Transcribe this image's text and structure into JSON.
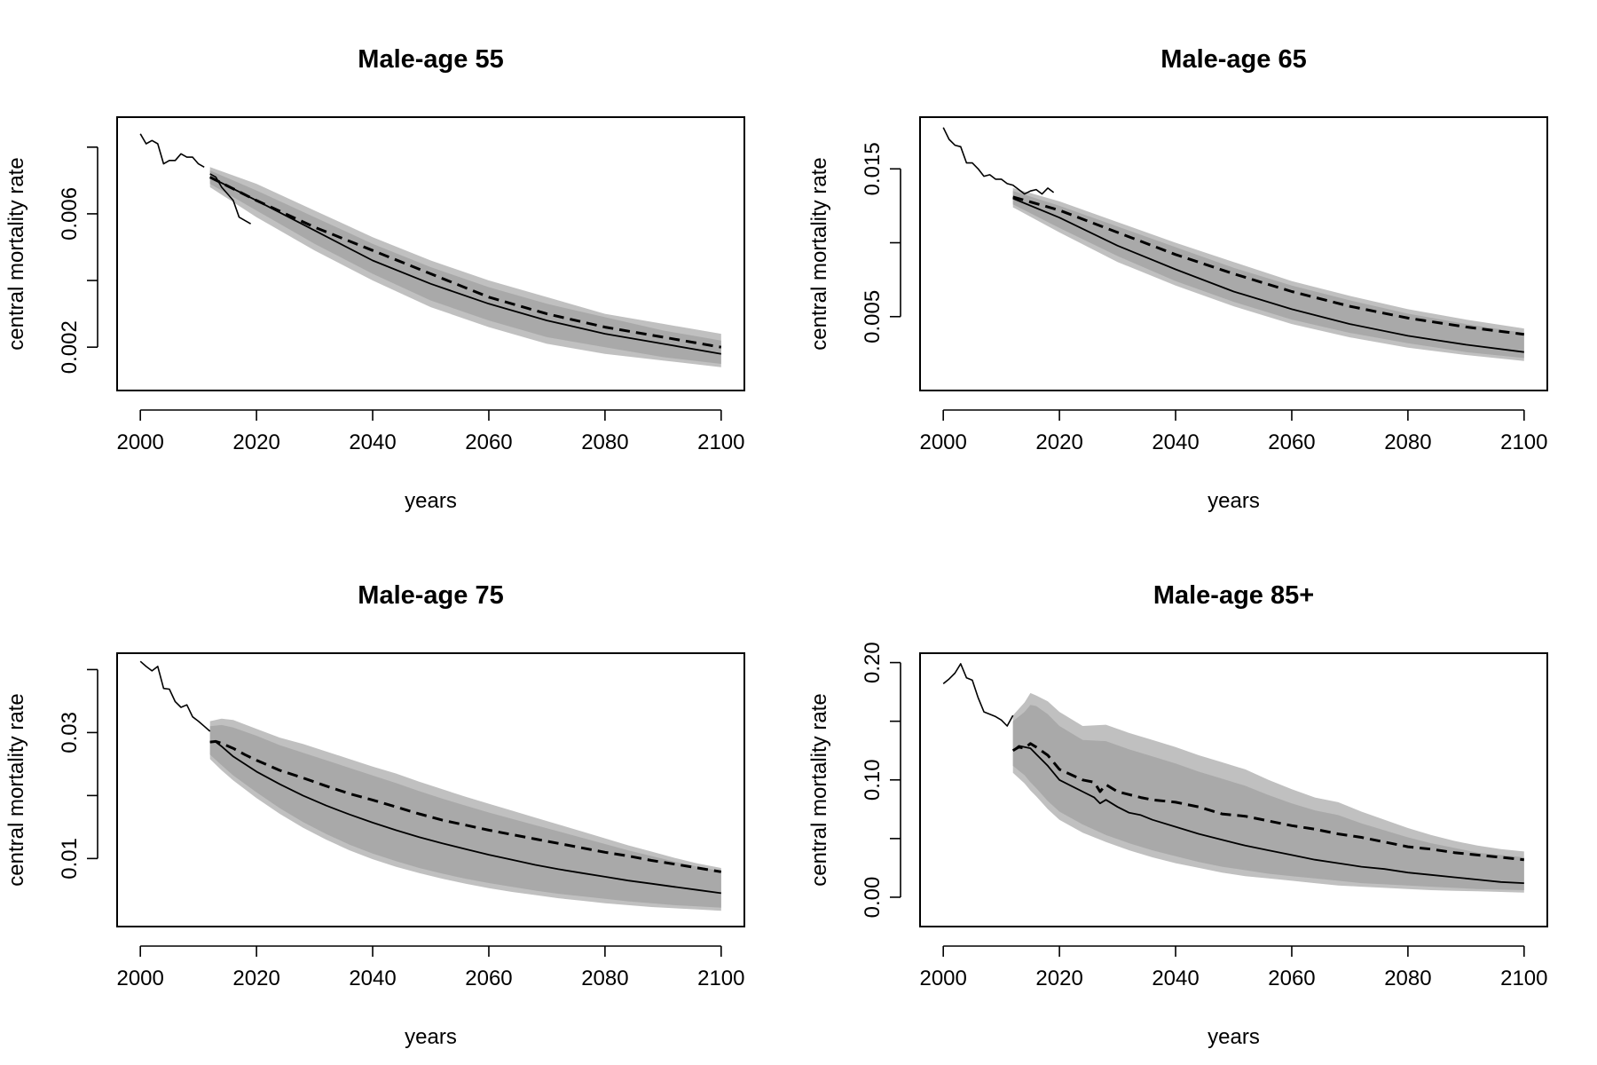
{
  "figure": {
    "layout": "2x2 grid",
    "colors": {
      "band_outer": "#c0c0c0",
      "band_inner": "#a9a9a9",
      "line": "#000000",
      "background": "#ffffff"
    }
  },
  "chart_data": [
    {
      "type": "line",
      "title": "Male-age 55",
      "xlabel": "years",
      "ylabel": "central mortality rate",
      "xlim": [
        1996,
        2104
      ],
      "ylim": [
        0.0007,
        0.0089
      ],
      "xticks": [
        "2000",
        "2020",
        "2040",
        "2060",
        "2080",
        "2100"
      ],
      "yticks": [
        "0.002",
        "0.006"
      ],
      "ytick_values": [
        0.002,
        0.004,
        0.006,
        0.008
      ],
      "series": [
        {
          "style": "observed",
          "x": [
            2000,
            2001,
            2002,
            2003,
            2004,
            2005,
            2006,
            2007,
            2008,
            2009,
            2010,
            2011
          ],
          "y": [
            0.0084,
            0.0081,
            0.0082,
            0.0081,
            0.0075,
            0.0076,
            0.0076,
            0.0078,
            0.0077,
            0.0077,
            0.0075,
            0.0074
          ]
        },
        {
          "style": "observed",
          "x": [
            2012,
            2013,
            2014,
            2015,
            2016,
            2017,
            2018,
            2019
          ],
          "y": [
            0.0072,
            0.0071,
            0.0068,
            0.0066,
            0.0064,
            0.0059,
            0.0058,
            0.0057
          ]
        },
        {
          "style": "solid",
          "x": [
            2012,
            2020,
            2030,
            2040,
            2050,
            2060,
            2070,
            2080,
            2090,
            2100
          ],
          "y": [
            0.0071,
            0.0064,
            0.0055,
            0.0046,
            0.0039,
            0.0033,
            0.0028,
            0.0024,
            0.0021,
            0.0018
          ]
        },
        {
          "style": "dashed",
          "x": [
            2012,
            2020,
            2030,
            2040,
            2050,
            2060,
            2070,
            2080,
            2090,
            2100
          ],
          "y": [
            0.0071,
            0.0064,
            0.0056,
            0.0049,
            0.0042,
            0.0035,
            0.003,
            0.0026,
            0.0023,
            0.002
          ]
        }
      ],
      "bands": {
        "x": [
          2012,
          2020,
          2030,
          2040,
          2050,
          2060,
          2070,
          2080,
          2090,
          2100
        ],
        "outer_upper": [
          0.0074,
          0.0069,
          0.0061,
          0.0053,
          0.0046,
          0.004,
          0.0035,
          0.003,
          0.0027,
          0.0024
        ],
        "inner_upper": [
          0.0073,
          0.0067,
          0.0059,
          0.0051,
          0.0044,
          0.0038,
          0.0033,
          0.0029,
          0.0025,
          0.0022
        ],
        "inner_lower": [
          0.0069,
          0.0061,
          0.0051,
          0.0042,
          0.0034,
          0.0028,
          0.0023,
          0.002,
          0.0017,
          0.0015
        ],
        "outer_lower": [
          0.0068,
          0.0059,
          0.0049,
          0.004,
          0.0032,
          0.0026,
          0.0021,
          0.0018,
          0.0016,
          0.0014
        ]
      }
    },
    {
      "type": "line",
      "title": "Male-age 65",
      "xlabel": "years",
      "ylabel": "central mortality rate",
      "xlim": [
        1996,
        2104
      ],
      "ylim": [
        0.0,
        0.0185
      ],
      "xticks": [
        "2000",
        "2020",
        "2040",
        "2060",
        "2080",
        "2100"
      ],
      "yticks": [
        "0.005",
        "0.015"
      ],
      "ytick_values": [
        0.005,
        0.01,
        0.015
      ],
      "series": [
        {
          "style": "observed",
          "x": [
            2000,
            2001,
            2002,
            2003,
            2004,
            2005,
            2006,
            2007,
            2008,
            2009,
            2010,
            2011,
            2012,
            2013,
            2014,
            2015,
            2016,
            2017,
            2018,
            2019
          ],
          "y": [
            0.0178,
            0.017,
            0.0166,
            0.0165,
            0.0154,
            0.0154,
            0.015,
            0.0145,
            0.0146,
            0.0143,
            0.0143,
            0.014,
            0.0139,
            0.0136,
            0.0133,
            0.0135,
            0.0136,
            0.0133,
            0.0137,
            0.0134
          ]
        },
        {
          "style": "solid",
          "x": [
            2012,
            2020,
            2030,
            2040,
            2050,
            2060,
            2070,
            2080,
            2090,
            2100
          ],
          "y": [
            0.013,
            0.0117,
            0.0098,
            0.0082,
            0.0067,
            0.0055,
            0.0045,
            0.0037,
            0.0031,
            0.0026
          ]
        },
        {
          "style": "dashed",
          "x": [
            2012,
            2020,
            2030,
            2040,
            2050,
            2060,
            2070,
            2080,
            2090,
            2100
          ],
          "y": [
            0.0131,
            0.0122,
            0.0107,
            0.0092,
            0.0079,
            0.0067,
            0.0057,
            0.0049,
            0.0043,
            0.0038
          ]
        }
      ],
      "bands": {
        "x": [
          2012,
          2020,
          2030,
          2040,
          2050,
          2060,
          2070,
          2080,
          2090,
          2100
        ],
        "outer_upper": [
          0.0137,
          0.0128,
          0.0114,
          0.01,
          0.0087,
          0.0074,
          0.0064,
          0.0055,
          0.0048,
          0.0042
        ],
        "inner_upper": [
          0.0135,
          0.0125,
          0.0111,
          0.0097,
          0.0083,
          0.0071,
          0.0061,
          0.0052,
          0.0045,
          0.0039
        ],
        "inner_lower": [
          0.0126,
          0.011,
          0.0091,
          0.0074,
          0.006,
          0.0048,
          0.0039,
          0.0032,
          0.0026,
          0.0022
        ],
        "outer_lower": [
          0.0124,
          0.0107,
          0.0087,
          0.0071,
          0.0057,
          0.0045,
          0.0036,
          0.0029,
          0.0024,
          0.002
        ]
      }
    },
    {
      "type": "line",
      "title": "Male-age 75",
      "xlabel": "years",
      "ylabel": "central mortality rate",
      "xlim": [
        1996,
        2104
      ],
      "ylim": [
        -0.0008,
        0.0426
      ],
      "xticks": [
        "2000",
        "2020",
        "2040",
        "2060",
        "2080",
        "2100"
      ],
      "yticks": [
        "0.01",
        "0.03"
      ],
      "ytick_values": [
        0.01,
        0.02,
        0.03,
        0.04
      ],
      "series": [
        {
          "style": "observed",
          "x": [
            2000,
            2001,
            2002,
            2003,
            2004,
            2005,
            2006,
            2007,
            2008,
            2009,
            2010,
            2011,
            2012
          ],
          "y": [
            0.0413,
            0.0405,
            0.0398,
            0.0405,
            0.037,
            0.0369,
            0.0349,
            0.034,
            0.0344,
            0.0325,
            0.0318,
            0.031,
            0.0302
          ]
        },
        {
          "style": "solid",
          "x": [
            2012,
            2013,
            2014,
            2016,
            2018,
            2020,
            2024,
            2028,
            2032,
            2036,
            2040,
            2044,
            2048,
            2052,
            2056,
            2060,
            2064,
            2068,
            2072,
            2076,
            2080,
            2084,
            2088,
            2092,
            2096,
            2100
          ],
          "y": [
            0.0285,
            0.0285,
            0.0278,
            0.0262,
            0.025,
            0.0238,
            0.0218,
            0.02,
            0.0184,
            0.017,
            0.0157,
            0.0145,
            0.0134,
            0.0124,
            0.0115,
            0.0106,
            0.0098,
            0.009,
            0.0083,
            0.0077,
            0.0071,
            0.0065,
            0.006,
            0.0055,
            0.005,
            0.0045
          ]
        },
        {
          "style": "dashed",
          "x": [
            2012,
            2013,
            2014,
            2016,
            2018,
            2020,
            2024,
            2028,
            2032,
            2036,
            2040,
            2044,
            2048,
            2052,
            2056,
            2060,
            2064,
            2068,
            2072,
            2076,
            2080,
            2084,
            2088,
            2092,
            2096,
            2100
          ],
          "y": [
            0.0285,
            0.0286,
            0.0283,
            0.0275,
            0.0265,
            0.0256,
            0.024,
            0.0228,
            0.0215,
            0.0203,
            0.0193,
            0.0182,
            0.0171,
            0.0161,
            0.0153,
            0.0145,
            0.0138,
            0.0131,
            0.0124,
            0.0117,
            0.011,
            0.0104,
            0.0097,
            0.0091,
            0.0085,
            0.0079
          ]
        }
      ],
      "bands": {
        "x": [
          2012,
          2014,
          2016,
          2020,
          2024,
          2028,
          2032,
          2036,
          2040,
          2044,
          2048,
          2052,
          2056,
          2060,
          2064,
          2068,
          2072,
          2076,
          2080,
          2084,
          2088,
          2092,
          2096,
          2100
        ],
        "outer_upper": [
          0.0318,
          0.0322,
          0.032,
          0.0306,
          0.0292,
          0.0282,
          0.027,
          0.0258,
          0.0246,
          0.0235,
          0.0222,
          0.021,
          0.0198,
          0.0187,
          0.0176,
          0.0165,
          0.0154,
          0.0143,
          0.0132,
          0.0121,
          0.0111,
          0.0101,
          0.0092,
          0.0085
        ],
        "inner_upper": [
          0.031,
          0.0312,
          0.0308,
          0.0295,
          0.028,
          0.0268,
          0.0256,
          0.0244,
          0.0232,
          0.022,
          0.0207,
          0.0195,
          0.0184,
          0.0173,
          0.0163,
          0.0153,
          0.0143,
          0.0133,
          0.0123,
          0.0113,
          0.0104,
          0.0095,
          0.0087,
          0.008
        ],
        "inner_lower": [
          0.0265,
          0.0248,
          0.0232,
          0.0205,
          0.018,
          0.0158,
          0.0139,
          0.0122,
          0.0108,
          0.0096,
          0.0085,
          0.0076,
          0.0068,
          0.0061,
          0.0055,
          0.0049,
          0.0044,
          0.004,
          0.0036,
          0.0032,
          0.0029,
          0.0026,
          0.0024,
          0.0022
        ],
        "outer_lower": [
          0.0258,
          0.024,
          0.0224,
          0.0196,
          0.0171,
          0.0149,
          0.013,
          0.0113,
          0.0099,
          0.0087,
          0.0077,
          0.0068,
          0.006,
          0.0053,
          0.0047,
          0.0042,
          0.0037,
          0.0033,
          0.0029,
          0.0026,
          0.0023,
          0.0021,
          0.0019,
          0.0017
        ]
      }
    },
    {
      "type": "line",
      "title": "Male-age 85+",
      "xlabel": "years",
      "ylabel": "central mortality rate",
      "xlim": [
        1996,
        2104
      ],
      "ylim": [
        -0.025,
        0.208
      ],
      "xticks": [
        "2000",
        "2020",
        "2040",
        "2060",
        "2080",
        "2100"
      ],
      "yticks": [
        "0.00",
        "0.10",
        "0.20"
      ],
      "ytick_values": [
        0.0,
        0.05,
        0.1,
        0.15,
        0.2
      ],
      "series": [
        {
          "style": "observed",
          "x": [
            2000,
            2001,
            2002,
            2003,
            2004,
            2005,
            2006,
            2007,
            2008,
            2009,
            2010,
            2011,
            2012
          ],
          "y": [
            0.182,
            0.186,
            0.191,
            0.199,
            0.187,
            0.185,
            0.17,
            0.158,
            0.156,
            0.154,
            0.151,
            0.146,
            0.155
          ]
        },
        {
          "style": "solid",
          "x": [
            2012,
            2013,
            2014,
            2015,
            2016,
            2018,
            2020,
            2022,
            2024,
            2026,
            2027,
            2028,
            2030,
            2032,
            2034,
            2036,
            2040,
            2044,
            2048,
            2052,
            2056,
            2060,
            2064,
            2068,
            2072,
            2076,
            2080,
            2084,
            2088,
            2092,
            2096,
            2100
          ],
          "y": [
            0.125,
            0.129,
            0.128,
            0.127,
            0.122,
            0.112,
            0.1,
            0.095,
            0.09,
            0.085,
            0.08,
            0.083,
            0.077,
            0.072,
            0.07,
            0.066,
            0.06,
            0.054,
            0.049,
            0.044,
            0.04,
            0.036,
            0.032,
            0.029,
            0.026,
            0.024,
            0.021,
            0.019,
            0.017,
            0.015,
            0.013,
            0.012
          ]
        },
        {
          "style": "dashed",
          "x": [
            2012,
            2013,
            2014,
            2015,
            2016,
            2018,
            2020,
            2024,
            2026,
            2027,
            2028,
            2030,
            2034,
            2036,
            2040,
            2044,
            2048,
            2052,
            2056,
            2060,
            2064,
            2068,
            2072,
            2076,
            2080,
            2084,
            2088,
            2092,
            2096,
            2100
          ],
          "y": [
            0.125,
            0.128,
            0.127,
            0.131,
            0.128,
            0.121,
            0.109,
            0.1,
            0.098,
            0.09,
            0.096,
            0.09,
            0.085,
            0.083,
            0.081,
            0.077,
            0.071,
            0.069,
            0.065,
            0.061,
            0.058,
            0.054,
            0.051,
            0.047,
            0.043,
            0.041,
            0.038,
            0.036,
            0.034,
            0.032
          ]
        }
      ],
      "bands": {
        "x": [
          2012,
          2014,
          2015,
          2016,
          2018,
          2020,
          2024,
          2028,
          2032,
          2036,
          2040,
          2044,
          2048,
          2052,
          2056,
          2060,
          2064,
          2068,
          2072,
          2076,
          2080,
          2084,
          2088,
          2092,
          2096,
          2100
        ],
        "outer_upper": [
          0.155,
          0.166,
          0.174,
          0.172,
          0.167,
          0.158,
          0.146,
          0.147,
          0.14,
          0.134,
          0.128,
          0.121,
          0.115,
          0.109,
          0.1,
          0.092,
          0.085,
          0.081,
          0.073,
          0.066,
          0.059,
          0.053,
          0.048,
          0.044,
          0.041,
          0.039
        ],
        "inner_upper": [
          0.15,
          0.158,
          0.164,
          0.163,
          0.156,
          0.146,
          0.134,
          0.133,
          0.126,
          0.12,
          0.114,
          0.107,
          0.101,
          0.095,
          0.087,
          0.08,
          0.074,
          0.07,
          0.063,
          0.057,
          0.051,
          0.046,
          0.042,
          0.038,
          0.036,
          0.034
        ],
        "inner_lower": [
          0.112,
          0.104,
          0.098,
          0.093,
          0.082,
          0.073,
          0.062,
          0.053,
          0.046,
          0.04,
          0.035,
          0.03,
          0.026,
          0.023,
          0.02,
          0.018,
          0.016,
          0.014,
          0.012,
          0.011,
          0.01,
          0.009,
          0.008,
          0.007,
          0.0065,
          0.006
        ],
        "outer_lower": [
          0.106,
          0.097,
          0.091,
          0.086,
          0.075,
          0.066,
          0.055,
          0.047,
          0.04,
          0.034,
          0.029,
          0.025,
          0.021,
          0.018,
          0.016,
          0.014,
          0.012,
          0.01,
          0.009,
          0.008,
          0.007,
          0.006,
          0.0055,
          0.005,
          0.0045,
          0.004
        ]
      }
    }
  ]
}
